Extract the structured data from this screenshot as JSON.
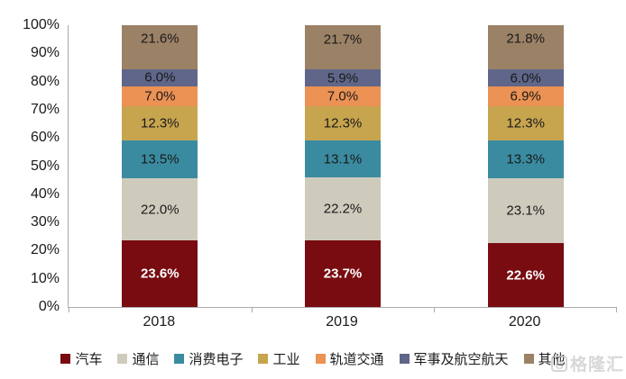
{
  "chart_data": {
    "type": "bar",
    "subtype": "stacked-percent-column",
    "title": "",
    "categories": [
      "2018",
      "2019",
      "2020"
    ],
    "series": [
      {
        "name": "汽车",
        "color": "#780C11",
        "values": [
          23.6,
          23.7,
          22.6
        ],
        "label_color": "#ffffff",
        "label_bold": true
      },
      {
        "name": "通信",
        "color": "#CECBBD",
        "values": [
          22.0,
          22.2,
          23.1
        ],
        "label_color": "#1a1a1a",
        "label_bold": false
      },
      {
        "name": "消费电子",
        "color": "#3A8BA0",
        "values": [
          13.5,
          13.1,
          13.3
        ],
        "label_color": "#1a1a1a",
        "label_bold": false
      },
      {
        "name": "工业",
        "color": "#C7A44E",
        "values": [
          12.3,
          12.3,
          12.3
        ],
        "label_color": "#1a1a1a",
        "label_bold": false
      },
      {
        "name": "轨道交通",
        "color": "#EB9254",
        "values": [
          7.0,
          7.0,
          6.9
        ],
        "label_color": "#1a1a1a",
        "label_bold": false
      },
      {
        "name": "军事及航空航天",
        "color": "#5F6689",
        "values": [
          6.0,
          5.9,
          6.0
        ],
        "label_color": "#1a1a1a",
        "label_bold": false
      },
      {
        "name": "其他",
        "color": "#9B8166",
        "values": [
          21.6,
          21.7,
          21.8
        ],
        "label_color": "#1a1a1a",
        "label_bold": false
      }
    ],
    "y_axis": {
      "min": 0,
      "max": 100,
      "tick_step": 10,
      "tick_labels": [
        "100%",
        "90%",
        "80%",
        "70%",
        "60%",
        "50%",
        "40%",
        "30%",
        "20%",
        "10%",
        "0%"
      ]
    },
    "x_axis": {
      "tick_labels": [
        "2018",
        "2019",
        "2020"
      ]
    },
    "grid": false,
    "legend_position": "bottom",
    "axis_color": "#ababab",
    "label_suffix": "%"
  },
  "watermark": {
    "text": "格隆汇",
    "logo_glyph": "G"
  }
}
